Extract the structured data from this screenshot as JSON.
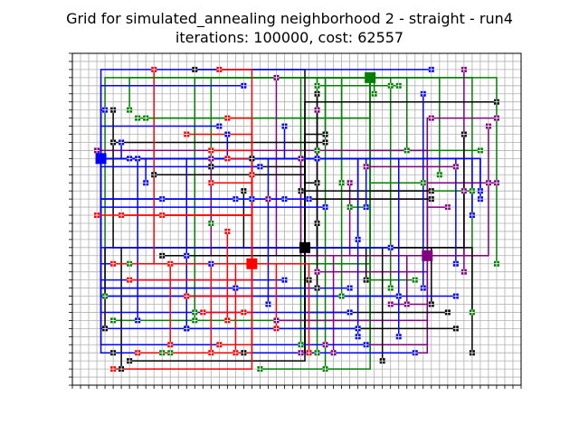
{
  "chart_data": {
    "type": "grid-routing",
    "title_line1": "Grid for simulated_annealing neighborhood 2 - straight - run4",
    "title_line2": "iterations: 100000, cost: 62557",
    "xlim": [
      0,
      55
    ],
    "ylim": [
      0,
      41
    ],
    "grid": true,
    "colors": {
      "red": "#ff0000",
      "blue": "#0000ff",
      "black": "#000000",
      "green": "#008000",
      "purple": "#800080"
    },
    "gates": [
      {
        "color": "red",
        "x": 22,
        "y": 15
      },
      {
        "color": "blue",
        "x": 3.5,
        "y": 28
      },
      {
        "color": "black",
        "x": 28.5,
        "y": 17
      },
      {
        "color": "green",
        "x": 36.5,
        "y": 38
      },
      {
        "color": "purple",
        "x": 43.5,
        "y": 16
      }
    ],
    "endpoints": {
      "red": [
        [
          10,
          39
        ],
        [
          18,
          39
        ],
        [
          19,
          33
        ],
        [
          14,
          31
        ],
        [
          17,
          29
        ],
        [
          19,
          28
        ],
        [
          17,
          25
        ],
        [
          22,
          26
        ],
        [
          3,
          21
        ],
        [
          6,
          21
        ],
        [
          11,
          21
        ],
        [
          19,
          19
        ],
        [
          12,
          15
        ],
        [
          5,
          15
        ],
        [
          7,
          13
        ],
        [
          14,
          11
        ],
        [
          21,
          9
        ],
        [
          16,
          9
        ],
        [
          19,
          8
        ],
        [
          18,
          5
        ],
        [
          17,
          4
        ],
        [
          20,
          4
        ],
        [
          8,
          4
        ],
        [
          5,
          2
        ],
        [
          12,
          5
        ],
        [
          25,
          7
        ],
        [
          29,
          4
        ]
      ],
      "blue": [
        [
          4,
          34
        ],
        [
          6,
          30
        ],
        [
          18,
          32
        ],
        [
          19,
          31
        ],
        [
          21,
          37
        ],
        [
          26,
          32
        ],
        [
          7,
          28
        ],
        [
          8,
          28
        ],
        [
          23,
          27
        ],
        [
          9,
          25
        ],
        [
          11,
          23
        ],
        [
          20,
          23
        ],
        [
          22,
          23
        ],
        [
          26,
          23
        ],
        [
          29,
          23
        ],
        [
          36,
          22
        ],
        [
          17,
          15
        ],
        [
          14,
          16
        ],
        [
          20,
          12
        ],
        [
          26,
          13
        ],
        [
          34,
          12
        ],
        [
          34,
          9
        ],
        [
          39,
          17
        ],
        [
          40,
          11
        ],
        [
          43,
          12
        ],
        [
          8,
          8
        ],
        [
          14,
          7
        ],
        [
          24,
          10
        ],
        [
          35,
          7
        ],
        [
          36,
          5
        ],
        [
          35,
          6
        ],
        [
          47,
          15
        ],
        [
          47,
          11
        ],
        [
          49,
          21
        ],
        [
          50,
          23
        ],
        [
          50,
          24
        ],
        [
          43,
          36
        ],
        [
          44,
          39
        ],
        [
          30,
          28
        ],
        [
          31,
          22
        ],
        [
          35,
          18
        ],
        [
          40,
          6
        ],
        [
          42,
          4
        ]
      ],
      "black": [
        [
          15,
          39
        ],
        [
          30,
          36
        ],
        [
          31,
          31
        ],
        [
          31,
          30
        ],
        [
          17,
          27
        ],
        [
          22,
          28
        ],
        [
          5,
          34
        ],
        [
          5,
          30
        ],
        [
          10,
          26
        ],
        [
          30,
          25
        ],
        [
          28,
          24
        ],
        [
          30,
          20
        ],
        [
          21,
          24
        ],
        [
          44,
          23
        ],
        [
          44,
          24
        ],
        [
          11,
          16
        ],
        [
          29,
          13
        ],
        [
          30,
          12
        ],
        [
          36,
          13
        ],
        [
          46,
          9
        ],
        [
          47,
          7
        ],
        [
          21,
          4
        ],
        [
          4,
          7
        ],
        [
          5,
          4
        ],
        [
          7,
          3
        ],
        [
          6,
          2
        ],
        [
          38,
          3
        ],
        [
          44,
          10
        ],
        [
          49,
          4
        ],
        [
          52,
          35
        ],
        [
          48,
          31
        ]
      ],
      "green": [
        [
          7,
          34
        ],
        [
          8,
          33
        ],
        [
          9,
          33
        ],
        [
          30,
          37
        ],
        [
          39,
          37
        ],
        [
          40,
          37
        ],
        [
          37,
          36
        ],
        [
          31,
          31
        ],
        [
          30,
          29
        ],
        [
          33,
          25
        ],
        [
          34,
          22
        ],
        [
          41,
          29
        ],
        [
          43,
          25
        ],
        [
          49,
          24
        ],
        [
          17,
          20
        ],
        [
          14,
          7
        ],
        [
          15,
          8
        ],
        [
          15,
          9
        ],
        [
          4,
          11
        ],
        [
          5,
          8
        ],
        [
          7,
          15
        ],
        [
          11,
          4
        ],
        [
          12,
          4
        ],
        [
          23,
          2
        ],
        [
          28,
          5
        ],
        [
          30,
          4
        ],
        [
          31,
          2
        ],
        [
          33,
          11
        ],
        [
          39,
          12
        ],
        [
          42,
          13
        ],
        [
          45,
          26
        ],
        [
          50,
          29
        ],
        [
          52,
          15
        ],
        [
          49,
          9
        ]
      ],
      "purple": [
        [
          25,
          38
        ],
        [
          30,
          34
        ],
        [
          17,
          28
        ],
        [
          28,
          28
        ],
        [
          48,
          39
        ],
        [
          44,
          33
        ],
        [
          51,
          32
        ],
        [
          52,
          33
        ],
        [
          47,
          27
        ],
        [
          48,
          24
        ],
        [
          51,
          25
        ],
        [
          52,
          25
        ],
        [
          3,
          29
        ],
        [
          24,
          23
        ],
        [
          34,
          25
        ],
        [
          36,
          27
        ],
        [
          46,
          22
        ],
        [
          48,
          14
        ],
        [
          41,
          10
        ],
        [
          39,
          10
        ],
        [
          30,
          14
        ],
        [
          25,
          8
        ],
        [
          28,
          4
        ],
        [
          32,
          4
        ],
        [
          31,
          5
        ]
      ]
    }
  }
}
